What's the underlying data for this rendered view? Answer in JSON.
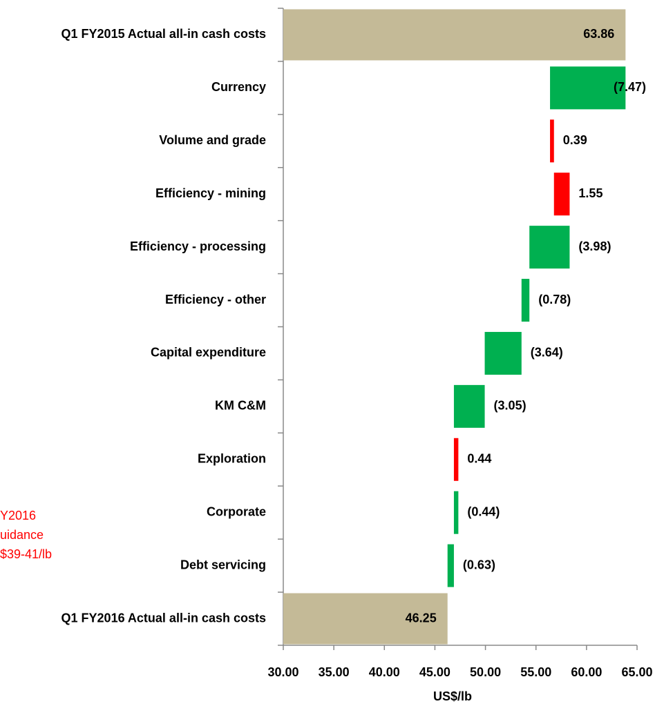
{
  "chart_data": {
    "type": "waterfall",
    "x_label": "US$/lb",
    "categories": [
      "Q1 FY2015 Actual all-in cash costs",
      "Currency",
      "Volume and grade",
      "Efficiency - mining",
      "Efficiency - processing",
      "Efficiency - other",
      "Capital expenditure",
      "KM C&M",
      "Exploration",
      "Corporate",
      "Debt servicing",
      "Q1 FY2016 Actual all-in cash costs"
    ],
    "values": [
      63.86,
      -7.47,
      0.39,
      1.55,
      -3.98,
      -0.78,
      -3.64,
      -3.05,
      0.44,
      -0.44,
      -0.63,
      46.25
    ],
    "value_labels": [
      "63.86",
      "(7.47)",
      "0.39",
      "1.55",
      "(3.98)",
      "(0.78)",
      "(3.64)",
      "(3.05)",
      "0.44",
      "(0.44)",
      "(0.63)",
      "46.25"
    ],
    "totals": [
      0,
      11
    ],
    "colors": {
      "total": "#c4ba97",
      "increase": "#ff0000",
      "decrease": "#00b050"
    },
    "xlim": [
      30,
      65
    ],
    "xticks": [
      {
        "value": 30,
        "label": "30.00"
      },
      {
        "value": 35,
        "label": "35.00"
      },
      {
        "value": 40,
        "label": "40.00"
      },
      {
        "value": 45,
        "label": "45.00"
      },
      {
        "value": 50,
        "label": "50.00"
      },
      {
        "value": 55,
        "label": "55.00"
      },
      {
        "value": 60,
        "label": "60.00"
      },
      {
        "value": 65,
        "label": "65.00"
      }
    ],
    "annotation": [
      "Y2016",
      "uidance",
      "$39-41/lb"
    ]
  }
}
